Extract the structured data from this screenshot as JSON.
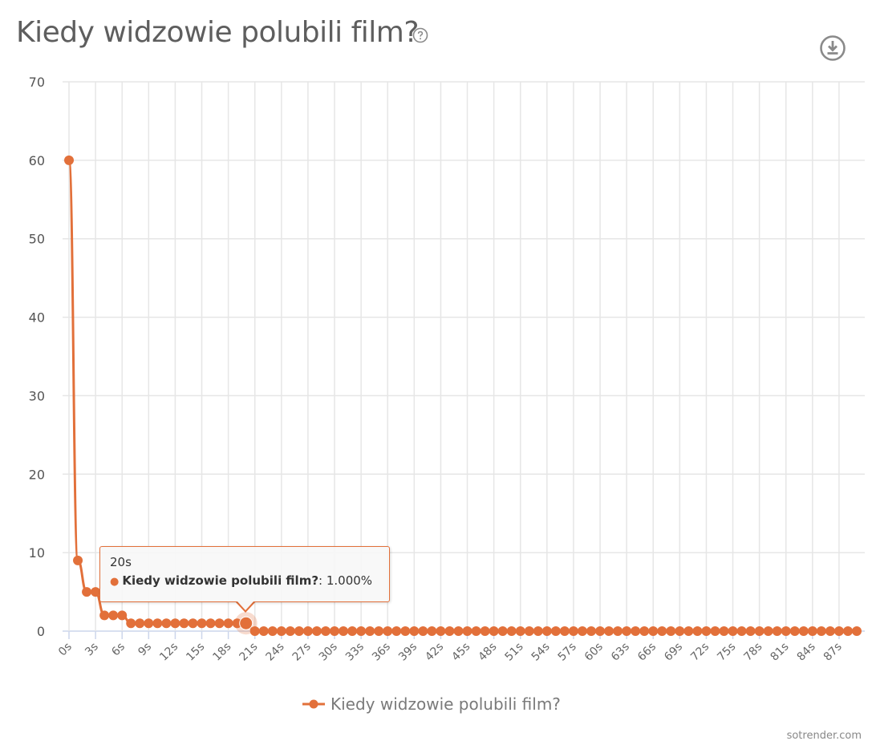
{
  "header": {
    "title": "Kiedy widzowie polubili film?",
    "help_icon": "question-circle-icon",
    "download_icon": "download-circle-icon"
  },
  "tooltip": {
    "x_label": "20s",
    "series_name": "Kiedy widzowie polubili film?",
    "value_text": ": 1.000%"
  },
  "legend": {
    "label": "Kiedy widzowie polubili film?"
  },
  "credit": "sotrender.com",
  "colors": {
    "series": "#e2703a",
    "grid": "#e6e6e6",
    "axis": "#ccd6eb",
    "text": "#555555"
  },
  "chart_data": {
    "type": "line",
    "title": "Kiedy widzowie polubili film?",
    "xlabel": "",
    "ylabel": "",
    "ylim": [
      0,
      70
    ],
    "yticks": [
      0,
      10,
      20,
      30,
      40,
      50,
      60,
      70
    ],
    "xtick_labels": [
      "0s",
      "3s",
      "6s",
      "9s",
      "12s",
      "15s",
      "18s",
      "21s",
      "24s",
      "27s",
      "30s",
      "33s",
      "36s",
      "39s",
      "42s",
      "45s",
      "48s",
      "51s",
      "54s",
      "57s",
      "60s",
      "63s",
      "66s",
      "69s",
      "72s",
      "75s",
      "78s",
      "81s",
      "84s",
      "87s"
    ],
    "grid": true,
    "legend_position": "bottom",
    "series": [
      {
        "name": "Kiedy widzowie polubili film?",
        "unit": "%",
        "x": [
          0,
          1,
          2,
          3,
          4,
          5,
          6,
          7,
          8,
          9,
          10,
          11,
          12,
          13,
          14,
          15,
          16,
          17,
          18,
          19,
          20,
          21,
          22,
          23,
          24,
          25,
          26,
          27,
          28,
          29,
          30,
          31,
          32,
          33,
          34,
          35,
          36,
          37,
          38,
          39,
          40,
          41,
          42,
          43,
          44,
          45,
          46,
          47,
          48,
          49,
          50,
          51,
          52,
          53,
          54,
          55,
          56,
          57,
          58,
          59,
          60,
          61,
          62,
          63,
          64,
          65,
          66,
          67,
          68,
          69,
          70,
          71,
          72,
          73,
          74,
          75,
          76,
          77,
          78,
          79,
          80,
          81,
          82,
          83,
          84,
          85,
          86,
          87,
          88,
          89
        ],
        "values": [
          60,
          9,
          5,
          5,
          2,
          2,
          2,
          1,
          1,
          1,
          1,
          1,
          1,
          1,
          1,
          1,
          1,
          1,
          1,
          1,
          1,
          0,
          0,
          0,
          0,
          0,
          0,
          0,
          0,
          0,
          0,
          0,
          0,
          0,
          0,
          0,
          0,
          0,
          0,
          0,
          0,
          0,
          0,
          0,
          0,
          0,
          0,
          0,
          0,
          0,
          0,
          0,
          0,
          0,
          0,
          0,
          0,
          0,
          0,
          0,
          0,
          0,
          0,
          0,
          0,
          0,
          0,
          0,
          0,
          0,
          0,
          0,
          0,
          0,
          0,
          0,
          0,
          0,
          0,
          0,
          0,
          0,
          0,
          0,
          0,
          0,
          0,
          0,
          0,
          0
        ]
      }
    ],
    "highlighted_point": {
      "x": 20,
      "x_label": "20s",
      "value": 1.0
    }
  }
}
